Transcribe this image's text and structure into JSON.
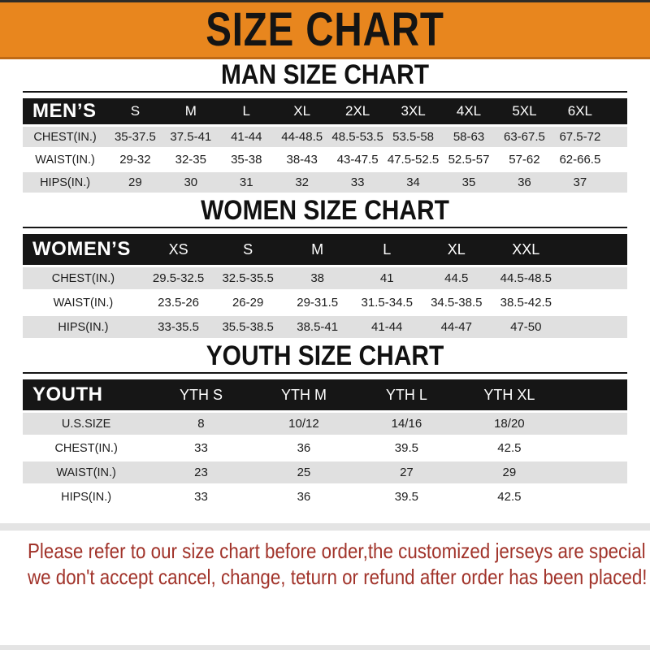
{
  "banner": {
    "title": "SIZE CHART"
  },
  "sections": [
    {
      "title": "MAN SIZE CHART",
      "header_label": "MEN’S",
      "columns": [
        "S",
        "M",
        "L",
        "XL",
        "2XL",
        "3XL",
        "4XL",
        "5XL",
        "6XL"
      ],
      "rows": [
        {
          "label": "CHEST(IN.)",
          "values": [
            "35-37.5",
            "37.5-41",
            "41-44",
            "44-48.5",
            "48.5-53.5",
            "53.5-58",
            "58-63",
            "63-67.5",
            "67.5-72"
          ]
        },
        {
          "label": "WAIST(IN.)",
          "values": [
            "29-32",
            "32-35",
            "35-38",
            "38-43",
            "43-47.5",
            "47.5-52.5",
            "52.5-57",
            "57-62",
            "62-66.5"
          ]
        },
        {
          "label": "HIPS(IN.)",
          "values": [
            "29",
            "30",
            "31",
            "32",
            "33",
            "34",
            "35",
            "36",
            "37"
          ]
        }
      ]
    },
    {
      "title": "WOMEN SIZE CHART",
      "header_label": "WOMEN’S",
      "columns": [
        "XS",
        "S",
        "M",
        "L",
        "XL",
        "XXL"
      ],
      "rows": [
        {
          "label": "CHEST(IN.)",
          "values": [
            "29.5-32.5",
            "32.5-35.5",
            "38",
            "41",
            "44.5",
            "44.5-48.5"
          ]
        },
        {
          "label": "WAIST(IN.)",
          "values": [
            "23.5-26",
            "26-29",
            "29-31.5",
            "31.5-34.5",
            "34.5-38.5",
            "38.5-42.5"
          ]
        },
        {
          "label": "HIPS(IN.)",
          "values": [
            "33-35.5",
            "35.5-38.5",
            "38.5-41",
            "41-44",
            "44-47",
            "47-50"
          ]
        }
      ]
    },
    {
      "title": "YOUTH SIZE CHART",
      "header_label": "YOUTH",
      "columns": [
        "YTH S",
        "YTH M",
        "YTH L",
        "YTH XL"
      ],
      "rows": [
        {
          "label": "U.S.SIZE",
          "values": [
            "8",
            "10/12",
            "14/16",
            "18/20"
          ]
        },
        {
          "label": "CHEST(IN.)",
          "values": [
            "33",
            "36",
            "39.5",
            "42.5"
          ]
        },
        {
          "label": "WAIST(IN.)",
          "values": [
            "23",
            "25",
            "27",
            "29"
          ]
        },
        {
          "label": "HIPS(IN.)",
          "values": [
            "33",
            "36",
            "39.5",
            "42.5"
          ]
        }
      ]
    }
  ],
  "footer": {
    "line1": "Please refer to our size chart before order,the customized jerseys are special products,",
    "line2": "we don't accept cancel, change, teturn or refund after order has been placed!"
  },
  "colors": {
    "banner_orange": "#E8861E",
    "banner_border": "#C06A15",
    "header_bar_black": "#161616",
    "row_gray": "#E0E0E0",
    "note_red": "#A1332A"
  }
}
